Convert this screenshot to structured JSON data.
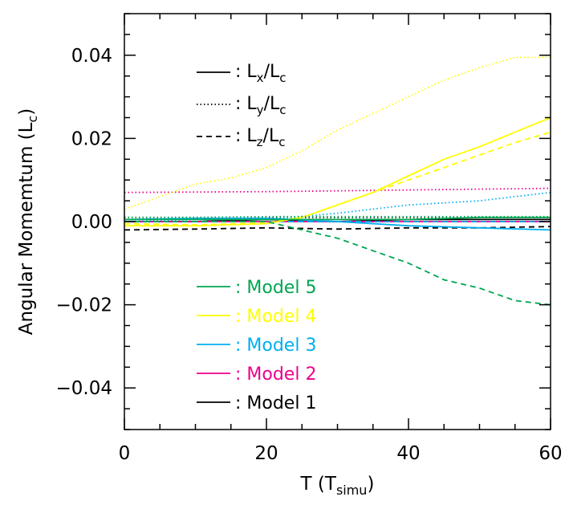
{
  "chart_data": {
    "type": "line",
    "xlabel": "T (T",
    "xlabel_sub": "simu",
    "xlabel_close": ")",
    "ylabel": "Angular Momemtum (L",
    "ylabel_sub": "c",
    "ylabel_close": ")",
    "xlim": [
      0,
      60
    ],
    "ylim": [
      -0.05,
      0.05
    ],
    "x_ticks": [
      0,
      20,
      40,
      60
    ],
    "x_tick_labels": [
      "0",
      "20",
      "40",
      "60"
    ],
    "y_ticks": [
      -0.04,
      -0.02,
      0.0,
      0.02,
      0.04
    ],
    "y_tick_labels": [
      "−0.04",
      "−0.02",
      "0.00",
      "0.02",
      "0.04"
    ],
    "x_minor_step": 5,
    "y_minor_step": 0.005,
    "grid": false,
    "component_legend": [
      {
        "style": "solid",
        "text": ": L",
        "sub1": "x",
        "mid": "/L",
        "sub2": "c"
      },
      {
        "style": "dotted",
        "text": ": L",
        "sub1": "y",
        "mid": "/L",
        "sub2": "c"
      },
      {
        "style": "dashed",
        "text": ": L",
        "sub1": "z",
        "mid": "/L",
        "sub2": "c"
      }
    ],
    "model_legend": [
      {
        "name": "Model 5",
        "label": ": Model 5",
        "color": "#00a651"
      },
      {
        "name": "Model 4",
        "label": ": Model 4",
        "color": "#ffff00"
      },
      {
        "name": "Model 3",
        "label": ": Model 3",
        "color": "#00aeef"
      },
      {
        "name": "Model 2",
        "label": ": Model 2",
        "color": "#ec008c"
      },
      {
        "name": "Model 1",
        "label": ": Model 1",
        "color": "#000000"
      }
    ],
    "series": [
      {
        "model": "Model 1",
        "component": "Lx",
        "style": "solid",
        "color": "#000000",
        "x": [
          0,
          10,
          20,
          30,
          40,
          50,
          60
        ],
        "y": [
          0.0,
          0.0,
          0.0005,
          0.0,
          0.0005,
          0.0005,
          0.0005
        ]
      },
      {
        "model": "Model 1",
        "component": "Ly",
        "style": "dotted",
        "color": "#000000",
        "x": [
          0,
          10,
          20,
          30,
          40,
          50,
          60
        ],
        "y": [
          0.001,
          0.001,
          0.001,
          0.001,
          0.001,
          0.001,
          0.001
        ]
      },
      {
        "model": "Model 1",
        "component": "Lz",
        "style": "dashed",
        "color": "#000000",
        "x": [
          0,
          10,
          20,
          30,
          40,
          50,
          60
        ],
        "y": [
          -0.002,
          -0.0018,
          -0.0015,
          -0.0018,
          -0.0015,
          -0.0015,
          -0.0012
        ]
      },
      {
        "model": "Model 2",
        "component": "Lx",
        "style": "solid",
        "color": "#ec008c",
        "x": [
          0,
          10,
          20,
          30,
          40,
          50,
          60
        ],
        "y": [
          0.0,
          0.0,
          0.0,
          0.0,
          0.0,
          0.0,
          0.0
        ]
      },
      {
        "model": "Model 2",
        "component": "Ly",
        "style": "dotted",
        "color": "#ec008c",
        "x": [
          0,
          10,
          20,
          30,
          40,
          50,
          60
        ],
        "y": [
          0.007,
          0.0071,
          0.0072,
          0.0074,
          0.0076,
          0.0078,
          0.008
        ]
      },
      {
        "model": "Model 2",
        "component": "Lz",
        "style": "dashed",
        "color": "#ec008c",
        "x": [
          0,
          10,
          20,
          30,
          40,
          50,
          60
        ],
        "y": [
          0.0,
          0.0,
          0.0,
          0.0,
          0.0,
          0.0,
          0.0
        ]
      },
      {
        "model": "Model 3",
        "component": "Lx",
        "style": "solid",
        "color": "#00aeef",
        "x": [
          0,
          10,
          20,
          30,
          40,
          50,
          60
        ],
        "y": [
          0.0005,
          0.0008,
          0.0008,
          0.0,
          -0.001,
          -0.0015,
          -0.002
        ]
      },
      {
        "model": "Model 3",
        "component": "Ly",
        "style": "dotted",
        "color": "#00aeef",
        "x": [
          0,
          10,
          20,
          30,
          40,
          50,
          60
        ],
        "y": [
          0.0,
          0.0005,
          0.0005,
          0.002,
          0.004,
          0.005,
          0.007
        ]
      },
      {
        "model": "Model 3",
        "component": "Lz",
        "style": "dashed",
        "color": "#00aeef",
        "x": [
          0,
          10,
          20,
          30,
          40,
          50,
          60
        ],
        "y": [
          0.0,
          0.0,
          0.0,
          0.0,
          0.0,
          0.0,
          0.0
        ]
      },
      {
        "model": "Model 4",
        "component": "Lx",
        "style": "solid",
        "color": "#ffff00",
        "x": [
          0,
          10,
          20,
          25,
          30,
          35,
          40,
          45,
          50,
          55,
          60
        ],
        "y": [
          -0.001,
          -0.001,
          -0.0005,
          0.001,
          0.004,
          0.007,
          0.011,
          0.015,
          0.018,
          0.0215,
          0.025
        ]
      },
      {
        "model": "Model 4",
        "component": "Ly",
        "style": "dotted",
        "color": "#ffff00",
        "x": [
          0,
          5,
          10,
          15,
          20,
          25,
          30,
          35,
          40,
          45,
          50,
          55,
          60
        ],
        "y": [
          0.003,
          0.006,
          0.009,
          0.0105,
          0.013,
          0.017,
          0.022,
          0.026,
          0.03,
          0.034,
          0.037,
          0.0395,
          0.0395
        ]
      },
      {
        "model": "Model 4",
        "component": "Lz",
        "style": "dashed",
        "color": "#ffff00",
        "x": [
          0,
          10,
          20,
          25,
          30,
          35,
          40,
          45,
          50,
          55,
          60
        ],
        "y": [
          -0.0005,
          -0.0008,
          -0.0003,
          0.001,
          0.004,
          0.007,
          0.01,
          0.013,
          0.016,
          0.019,
          0.0215
        ]
      },
      {
        "model": "Model 5",
        "component": "Lx",
        "style": "solid",
        "color": "#00a651",
        "x": [
          0,
          10,
          20,
          30,
          40,
          50,
          60
        ],
        "y": [
          0.0005,
          0.0005,
          0.0005,
          0.0005,
          0.0005,
          0.001,
          0.001
        ]
      },
      {
        "model": "Model 5",
        "component": "Ly",
        "style": "dotted",
        "color": "#00a651",
        "x": [
          0,
          10,
          20,
          30,
          40,
          50,
          60
        ],
        "y": [
          0.001,
          0.001,
          0.0012,
          0.0012,
          0.0012,
          0.0012,
          0.0012
        ]
      },
      {
        "model": "Model 5",
        "component": "Lz",
        "style": "dashed",
        "color": "#00a651",
        "x": [
          0,
          10,
          20,
          25,
          30,
          35,
          40,
          45,
          50,
          55,
          60
        ],
        "y": [
          0.0,
          0.0,
          0.0,
          -0.002,
          -0.004,
          -0.007,
          -0.01,
          -0.014,
          -0.016,
          -0.019,
          -0.02
        ]
      }
    ]
  }
}
